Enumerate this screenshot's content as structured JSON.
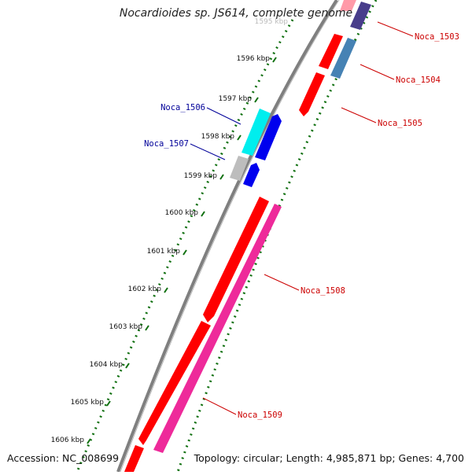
{
  "title": "Nocardioides sp. JS614, complete genome",
  "accession": "Accession: NC_008699",
  "summary": "Topology: circular; Length: 4,985,871 bp; Genes: 4,700",
  "ruler": {
    "partial_label": "1595 kbp",
    "ticks": [
      "1596 kbp",
      "1597 kbp",
      "1598 kbp",
      "1599 kbp",
      "1600 kbp",
      "1601 kbp",
      "1602 kbp",
      "1603 kbp",
      "1604 kbp",
      "1605 kbp",
      "1606 kbp"
    ]
  },
  "genes": [
    {
      "label": "Noca_1503",
      "color": "#cc0000",
      "side": "right"
    },
    {
      "label": "Noca_1504",
      "color": "#cc0000",
      "side": "right"
    },
    {
      "label": "Noca_1505",
      "color": "#cc0000",
      "side": "right"
    },
    {
      "label": "Noca_1506",
      "color": "#000099",
      "side": "left"
    },
    {
      "label": "Noca_1507",
      "color": "#000099",
      "side": "left"
    },
    {
      "label": "Noca_1508",
      "color": "#cc0000",
      "side": "right"
    },
    {
      "label": "Noca_1509",
      "color": "#cc0000",
      "side": "right"
    }
  ],
  "colors": {
    "backbone": "#7f7f7f",
    "cds_red": "#ff0000",
    "cds_magenta": "#ee2a9a",
    "cds_blue": "#0000ee",
    "cds_cyan": "#00eeee",
    "cds_steelblue": "#4682b4",
    "cds_purple": "#483d8b",
    "cds_grey": "#bdbdbd",
    "ruler": "#107010"
  }
}
